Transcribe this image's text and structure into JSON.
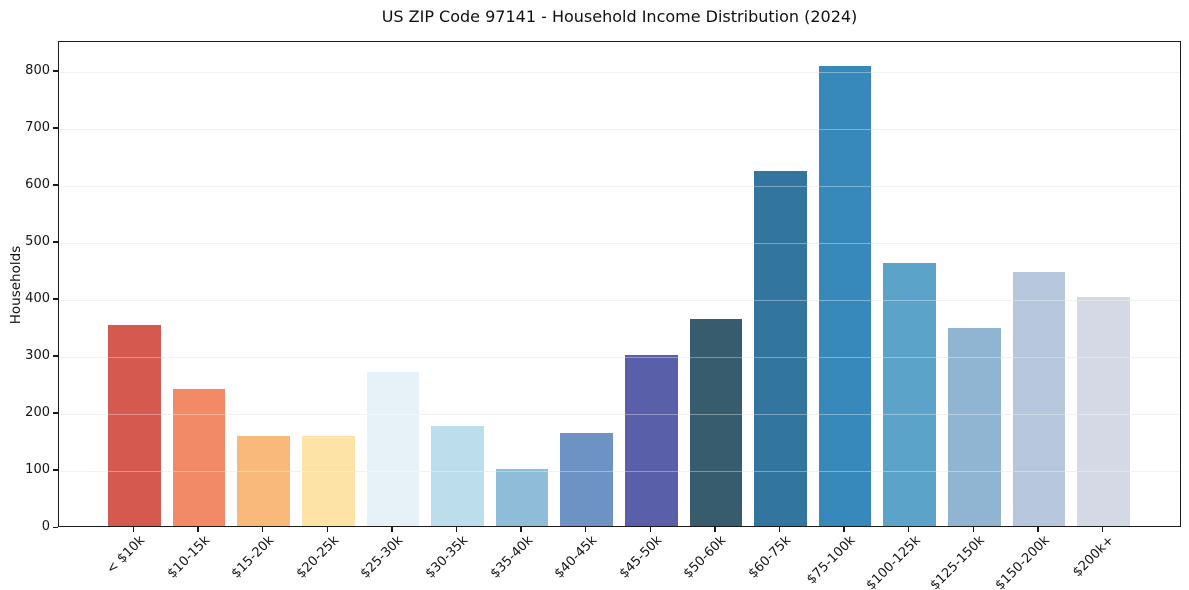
{
  "chart_data": {
    "type": "bar",
    "title": "US ZIP Code 97141 - Household Income Distribution (2024)",
    "xlabel": "",
    "ylabel": "Households",
    "categories": [
      "< $10k",
      "$10-15k",
      "$15-20k",
      "$20-25k",
      "$25-30k",
      "$30-35k",
      "$35-40k",
      "$40-45k",
      "$45-50k",
      "$50-60k",
      "$60-75k",
      "$75-100k",
      "$100-125k",
      "$125-150k",
      "$150-200k",
      "$200k+"
    ],
    "values": [
      352,
      240,
      157,
      157,
      270,
      176,
      100,
      163,
      300,
      363,
      623,
      807,
      461,
      348,
      446,
      401
    ],
    "bar_colors": [
      "#d5594e",
      "#f28a68",
      "#f9b97b",
      "#fde3a5",
      "#e6f2f7",
      "#bcdeec",
      "#8fbcd8",
      "#6c93c4",
      "#5a5fa9",
      "#365c6d",
      "#32769f",
      "#3789bc",
      "#5ba3c9",
      "#90b5d2",
      "#b6c7de",
      "#d5d9e6"
    ],
    "yticks": [
      0,
      100,
      200,
      300,
      400,
      500,
      600,
      700,
      800
    ],
    "ylim": [
      0,
      852
    ],
    "grid": "horizontal",
    "legend": "none",
    "spine_color": "#1a1a1a",
    "grid_color": "#ececec",
    "background_color": "#ffffff"
  }
}
